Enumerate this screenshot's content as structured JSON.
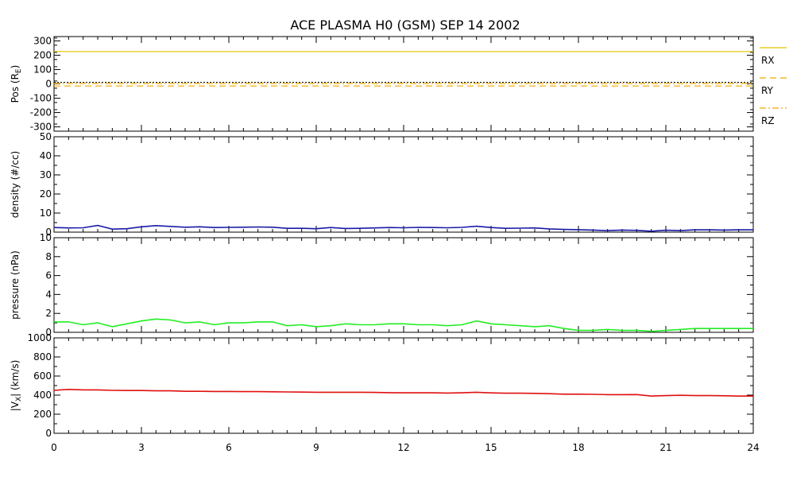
{
  "chart_data": {
    "type": "line",
    "title": "ACE PLASMA H0 (GSM)   SEP 14 2002",
    "x": {
      "range": [
        0,
        24
      ],
      "ticks": [
        0,
        3,
        6,
        9,
        12,
        15,
        18,
        21,
        24
      ],
      "tick_labels": [
        "0",
        "3",
        "6",
        "9",
        "12",
        "15",
        "18",
        "21",
        "24"
      ]
    },
    "panels": [
      {
        "id": "pos",
        "ylabel_parts": [
          "Pos (R",
          "E",
          ")"
        ],
        "ylim": [
          -330,
          330
        ],
        "yticks": [
          -300,
          -200,
          -100,
          0,
          100,
          200,
          300
        ],
        "ytick_labels": [
          "-300",
          "-200",
          "-100",
          "0",
          "100",
          "200",
          "300"
        ],
        "zero_line": true,
        "series": [
          {
            "name": "R",
            "sub": "X",
            "color": "#e6c200",
            "style": "solid",
            "const": 226
          },
          {
            "name": "R",
            "sub": "Y",
            "color": "#f0a800",
            "style": "dashed",
            "const": -15
          },
          {
            "name": "R",
            "sub": "Z",
            "color": "#f0a800",
            "style": "dashdot",
            "const": 3
          }
        ]
      },
      {
        "id": "density",
        "ylabel_parts": [
          "density (#/cc)"
        ],
        "ylim": [
          0,
          50
        ],
        "yticks": [
          0,
          10,
          20,
          30,
          40,
          50
        ],
        "ytick_labels": [
          "0",
          "10",
          "20",
          "30",
          "40",
          "50"
        ],
        "series": [
          {
            "color": "#1a1aa8",
            "x": [
              0,
              0.5,
              1.0,
              1.5,
              2.0,
              2.5,
              3.0,
              3.5,
              4.0,
              4.5,
              5.0,
              5.5,
              6.0,
              6.5,
              7.0,
              7.5,
              8.0,
              8.5,
              9.0,
              9.5,
              10.0,
              10.5,
              11.0,
              11.5,
              12.0,
              12.5,
              13.0,
              13.5,
              14.0,
              14.5,
              15.0,
              15.5,
              16.0,
              16.5,
              17.0,
              17.5,
              18.0,
              18.5,
              19.0,
              19.5,
              20.0,
              20.5,
              21.0,
              21.5,
              22.0,
              22.5,
              23.0,
              23.5,
              24.0
            ],
            "y": [
              2.4,
              2.2,
              2.3,
              3.5,
              1.6,
              1.8,
              2.8,
              3.4,
              3.0,
              2.6,
              2.8,
              2.4,
              2.5,
              2.6,
              2.7,
              2.6,
              2.0,
              2.0,
              1.8,
              2.4,
              1.9,
              2.0,
              2.2,
              2.4,
              2.3,
              2.5,
              2.4,
              2.3,
              2.5,
              3.1,
              2.4,
              2.0,
              2.1,
              2.2,
              1.7,
              1.4,
              1.3,
              1.1,
              0.8,
              1.1,
              0.9,
              0.5,
              1.0,
              0.8,
              1.2,
              1.2,
              1.1,
              1.2,
              1.2
            ]
          }
        ]
      },
      {
        "id": "pressure",
        "ylabel_parts": [
          "pressure (nPa)"
        ],
        "ylim": [
          0,
          10
        ],
        "yticks": [
          0,
          2,
          4,
          6,
          8,
          10
        ],
        "ytick_labels": [
          "0",
          "2",
          "4",
          "6",
          "8",
          "10"
        ],
        "series": [
          {
            "color": "#22ee22",
            "x": [
              0,
              0.5,
              1.0,
              1.5,
              2.0,
              2.5,
              3.0,
              3.5,
              4.0,
              4.5,
              5.0,
              5.5,
              6.0,
              6.5,
              7.0,
              7.5,
              8.0,
              8.5,
              9.0,
              9.5,
              10.0,
              10.5,
              11.0,
              11.5,
              12.0,
              12.5,
              13.0,
              13.5,
              14.0,
              14.5,
              15.0,
              15.5,
              16.0,
              16.5,
              17.0,
              17.5,
              18.0,
              18.5,
              19.0,
              19.5,
              20.0,
              20.5,
              21.0,
              21.5,
              22.0,
              22.5,
              23.0,
              23.5,
              24.0
            ],
            "y": [
              1.1,
              1.1,
              0.8,
              1.0,
              0.6,
              0.9,
              1.2,
              1.4,
              1.3,
              1.0,
              1.1,
              0.8,
              1.0,
              1.0,
              1.1,
              1.1,
              0.7,
              0.8,
              0.6,
              0.7,
              0.9,
              0.8,
              0.8,
              0.9,
              0.9,
              0.8,
              0.8,
              0.7,
              0.8,
              1.2,
              0.9,
              0.8,
              0.7,
              0.6,
              0.7,
              0.4,
              0.2,
              0.2,
              0.3,
              0.2,
              0.2,
              0.1,
              0.2,
              0.3,
              0.4,
              0.4,
              0.4,
              0.4,
              0.4
            ]
          }
        ]
      },
      {
        "id": "vx",
        "ylabel_parts": [
          "|V",
          "X",
          "| (km/s)"
        ],
        "ylim": [
          0,
          1000
        ],
        "yticks": [
          0,
          200,
          400,
          600,
          800,
          1000
        ],
        "ytick_labels": [
          "0",
          "200",
          "400",
          "600",
          "800",
          "1000"
        ],
        "series": [
          {
            "color": "#e01010",
            "x": [
              0,
              0.5,
              1.0,
              1.5,
              2.0,
              2.5,
              3.0,
              3.5,
              4.0,
              4.5,
              5.0,
              5.5,
              6.0,
              6.5,
              7.0,
              7.5,
              8.0,
              8.5,
              9.0,
              9.5,
              10.0,
              10.5,
              11.0,
              11.5,
              12.0,
              12.5,
              13.0,
              13.5,
              14.0,
              14.5,
              15.0,
              15.5,
              16.0,
              16.5,
              17.0,
              17.5,
              18.0,
              18.5,
              19.0,
              19.5,
              20.0,
              20.5,
              21.0,
              21.5,
              22.0,
              22.5,
              23.0,
              23.5,
              24.0
            ],
            "y": [
              450,
              460,
              455,
              455,
              450,
              448,
              448,
              445,
              445,
              440,
              440,
              438,
              438,
              437,
              437,
              435,
              433,
              432,
              430,
              430,
              430,
              430,
              428,
              426,
              424,
              424,
              424,
              422,
              424,
              430,
              423,
              420,
              420,
              418,
              415,
              410,
              410,
              408,
              405,
              405,
              406,
              390,
              395,
              398,
              395,
              395,
              393,
              390,
              390
            ]
          }
        ]
      }
    ]
  }
}
